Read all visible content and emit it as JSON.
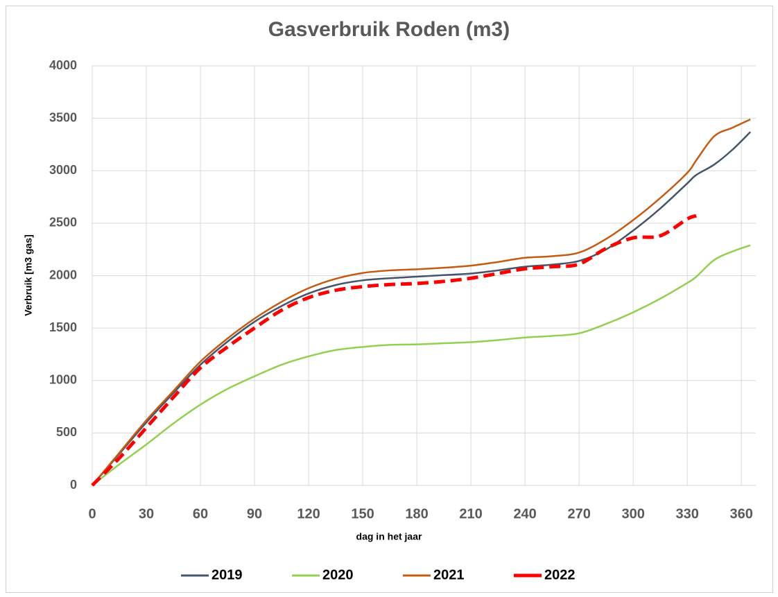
{
  "chart_data": {
    "type": "line",
    "title": "Gasverbruik Roden (m3)",
    "x_label": "dag in het jaar",
    "y_label": "Verbruik [m3 gas]",
    "x": [
      0,
      15,
      30,
      45,
      60,
      75,
      90,
      105,
      120,
      135,
      150,
      165,
      180,
      195,
      210,
      225,
      240,
      255,
      270,
      285,
      300,
      315,
      330,
      335,
      345,
      355,
      365
    ],
    "series": [
      {
        "name": "2019",
        "color": "#44546a",
        "values": [
          0,
          300,
          600,
          880,
          1150,
          1370,
          1560,
          1710,
          1830,
          1910,
          1955,
          1975,
          1990,
          2005,
          2020,
          2050,
          2085,
          2105,
          2140,
          2250,
          2430,
          2640,
          2880,
          2960,
          3060,
          3200,
          3370
        ]
      },
      {
        "name": "2020",
        "color": "#92d050",
        "values": [
          0,
          200,
          390,
          590,
          770,
          920,
          1040,
          1150,
          1230,
          1290,
          1320,
          1340,
          1345,
          1355,
          1365,
          1385,
          1410,
          1425,
          1450,
          1540,
          1650,
          1780,
          1930,
          1990,
          2150,
          2230,
          2290
        ]
      },
      {
        "name": "2021",
        "color": "#c55a11",
        "values": [
          0,
          310,
          620,
          900,
          1180,
          1400,
          1590,
          1750,
          1880,
          1970,
          2025,
          2050,
          2060,
          2075,
          2095,
          2130,
          2170,
          2185,
          2220,
          2350,
          2530,
          2740,
          2980,
          3100,
          3330,
          3410,
          3490
        ]
      },
      {
        "name": "2022",
        "color": "#ff0000",
        "dashed": true,
        "values": [
          0,
          260,
          550,
          840,
          1120,
          1320,
          1500,
          1670,
          1790,
          1860,
          1895,
          1915,
          1925,
          1945,
          1975,
          2020,
          2065,
          2085,
          2110,
          2260,
          2360,
          2380,
          2540,
          2570,
          null,
          null,
          null
        ]
      }
    ],
    "xlim": [
      0,
      368
    ],
    "xticks": [
      0,
      30,
      60,
      90,
      120,
      150,
      180,
      210,
      240,
      270,
      300,
      330,
      360
    ],
    "ylim": [
      0,
      4000
    ],
    "yticks": [
      0,
      500,
      1000,
      1500,
      2000,
      2500,
      3000,
      3500,
      4000
    ],
    "grid": true,
    "legend": "bottom"
  }
}
